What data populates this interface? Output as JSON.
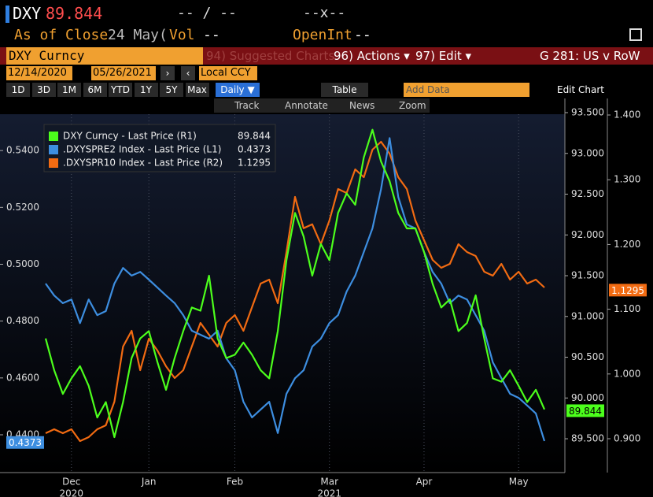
{
  "header": {
    "ticker": "DXY",
    "price": "89.844",
    "mid1": "-- / --",
    "mid2": "--x--",
    "as_of": "As of Close",
    "date": "24 May(",
    "vol_label": "Vol",
    "vol": "--",
    "oi_label": "OpenInt",
    "oi": "--"
  },
  "menu": {
    "security": "DXY Curncy",
    "suggested": "94) Suggested Charts",
    "actions": "96) Actions ▾",
    "edit": "97) Edit ▾",
    "chart_name": "G 281: US v RoW"
  },
  "range": {
    "start": "12/14/2020",
    "end": "05/26/2021",
    "currency": "Local CCY"
  },
  "toolbar": {
    "periods": [
      "1D",
      "3D",
      "1M",
      "6M",
      "YTD",
      "1Y",
      "5Y",
      "Max"
    ],
    "frequency": "Daily ▼",
    "table": "Table",
    "add_data": "Add Data",
    "edit_chart": "Edit Chart"
  },
  "tools": [
    "Track",
    "Annotate",
    "News",
    "Zoom"
  ],
  "chart_data": {
    "type": "line",
    "grid": "x",
    "legend": "upper left",
    "categories": [
      null,
      null,
      null,
      "Dec",
      null,
      null,
      null,
      null,
      null,
      null,
      null,
      null,
      "Jan",
      null,
      null,
      null,
      null,
      null,
      null,
      null,
      null,
      null,
      "Feb",
      null,
      null,
      null,
      null,
      null,
      null,
      null,
      null,
      null,
      null,
      "Mar",
      null,
      null,
      null,
      null,
      null,
      null,
      null,
      null,
      null,
      null,
      "Apr",
      null,
      null,
      null,
      null,
      null,
      null,
      null,
      null,
      null,
      null,
      "May",
      null,
      null,
      null
    ],
    "category_years": [
      null,
      null,
      null,
      "2020",
      null,
      null,
      null,
      null,
      null,
      null,
      null,
      null,
      null,
      null,
      null,
      null,
      null,
      null,
      null,
      null,
      null,
      null,
      null,
      null,
      null,
      null,
      null,
      null,
      null,
      null,
      null,
      null,
      null,
      "2021",
      null,
      null,
      null,
      null,
      null,
      null,
      null,
      null,
      null,
      null,
      null,
      null,
      null,
      null,
      null,
      null,
      null,
      null,
      null,
      null,
      null,
      null,
      null,
      null,
      null
    ],
    "ylim": [
      0.4267,
      0.5575
    ],
    "yticks": [
      {
        "value": 0.44,
        "label": "0.4400"
      },
      {
        "value": 0.46,
        "label": "0.4600"
      },
      {
        "value": 0.48,
        "label": "0.4800"
      },
      {
        "value": 0.5,
        "label": "0.5000"
      },
      {
        "value": 0.52,
        "label": "0.5200"
      },
      {
        "value": 0.54,
        "label": "0.5400"
      }
    ],
    "y2lim": [
      89.085,
      93.645
    ],
    "y2ticks": [
      {
        "value": 89.5,
        "label": "89.500"
      },
      {
        "value": 90,
        "label": "90.000"
      },
      {
        "value": 90.5,
        "label": "90.500"
      },
      {
        "value": 91,
        "label": "91.000"
      },
      {
        "value": 91.5,
        "label": "91.500"
      },
      {
        "value": 92,
        "label": "92.000"
      },
      {
        "value": 92.5,
        "label": "92.500"
      },
      {
        "value": 93,
        "label": "93.000"
      },
      {
        "value": 93.5,
        "label": "93.500"
      }
    ],
    "y3lim": [
      0.8477,
      1.4219
    ],
    "y3ticks": [
      {
        "value": 0.9,
        "label": "0.900"
      },
      {
        "value": 1,
        "label": "1.000"
      },
      {
        "value": 1.1,
        "label": "1.100"
      },
      {
        "value": 1.2,
        "label": "1.200"
      },
      {
        "value": 1.3,
        "label": "1.300"
      },
      {
        "value": 1.4,
        "label": "1.400"
      }
    ],
    "series": [
      {
        "name": "DXY Curncy - Last Price (R1)",
        "color": "#4cff1c",
        "axis": "y2",
        "last": 89.844,
        "values": [
          90.73,
          90.34,
          90.05,
          90.24,
          90.39,
          90.15,
          89.76,
          89.95,
          89.52,
          89.95,
          90.49,
          90.73,
          90.82,
          90.44,
          90.1,
          90.49,
          90.82,
          91.11,
          91.07,
          91.5,
          90.73,
          90.49,
          90.53,
          90.68,
          90.53,
          90.34,
          90.24,
          90.82,
          91.69,
          92.27,
          91.98,
          91.5,
          91.89,
          91.69,
          92.27,
          92.51,
          92.37,
          92.95,
          93.29,
          92.9,
          92.66,
          92.27,
          92.08,
          92.08,
          91.79,
          91.4,
          91.11,
          91.21,
          90.82,
          90.92,
          91.26,
          90.73,
          90.24,
          90.2,
          90.34,
          90.15,
          89.95,
          90.1,
          89.86
        ]
      },
      {
        "name": ".DXYSPRE2 Index - Last Price (L1)",
        "color": "#3d8ee0",
        "axis": "y",
        "last": 0.4373,
        "values": [
          0.4932,
          0.489,
          0.4863,
          0.4876,
          0.4793,
          0.4876,
          0.4821,
          0.4835,
          0.4932,
          0.4987,
          0.496,
          0.4973,
          0.4946,
          0.4918,
          0.489,
          0.4863,
          0.4821,
          0.4766,
          0.4752,
          0.4738,
          0.4766,
          0.4669,
          0.4627,
          0.4516,
          0.4461,
          0.4489,
          0.4516,
          0.4406,
          0.4544,
          0.4599,
          0.4627,
          0.471,
          0.4738,
          0.4793,
          0.4821,
          0.4904,
          0.496,
          0.5043,
          0.5126,
          0.5264,
          0.5444,
          0.5237,
          0.514,
          0.5126,
          0.5043,
          0.4973,
          0.4932,
          0.4863,
          0.489,
          0.4876,
          0.4821,
          0.4766,
          0.4655,
          0.4599,
          0.4544,
          0.453,
          0.4503,
          0.4475,
          0.4378
        ]
      },
      {
        "name": ".DXYSPR10 Index - Last Price (R2)",
        "color": "#f26b12",
        "axis": "y3",
        "last": 1.1295,
        "values": [
          0.9085,
          0.9146,
          0.9085,
          0.9146,
          0.8964,
          0.9024,
          0.9146,
          0.9207,
          0.9572,
          1.0423,
          1.0667,
          1.0058,
          1.0545,
          1.0363,
          1.0119,
          0.9937,
          1.0058,
          1.0423,
          1.0788,
          1.0606,
          1.0423,
          1.0788,
          1.091,
          1.0667,
          1.1032,
          1.1397,
          1.1457,
          1.1092,
          1.1883,
          1.2735,
          1.2251,
          1.2311,
          1.2005,
          1.237,
          1.2856,
          1.2796,
          1.3161,
          1.3039,
          1.3465,
          1.3586,
          1.3404,
          1.3039,
          1.2856,
          1.237,
          1.2066,
          1.1762,
          1.164,
          1.1701,
          1.2005,
          1.1883,
          1.1822,
          1.1579,
          1.1518,
          1.1701,
          1.1457,
          1.1579,
          1.1397,
          1.1457,
          1.1336
        ]
      }
    ]
  }
}
